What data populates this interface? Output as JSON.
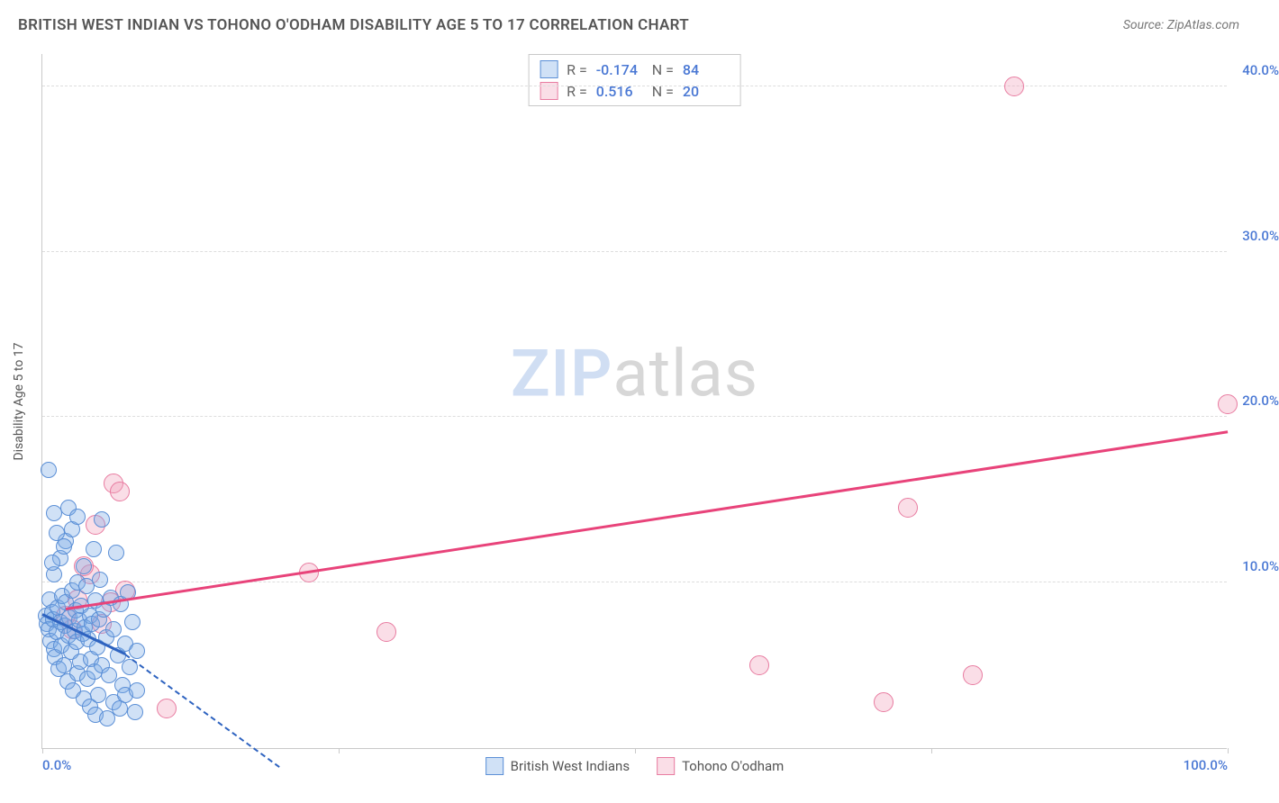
{
  "header": {
    "title": "BRITISH WEST INDIAN VS TOHONO O'ODHAM DISABILITY AGE 5 TO 17 CORRELATION CHART",
    "source": "Source: ZipAtlas.com"
  },
  "chart": {
    "type": "scatter",
    "y_axis_title": "Disability Age 5 to 17",
    "xlim": [
      0,
      100
    ],
    "ylim": [
      0,
      42
    ],
    "y_ticks": [
      10,
      20,
      30,
      40
    ],
    "y_tick_labels": [
      "10.0%",
      "20.0%",
      "30.0%",
      "40.0%"
    ],
    "x_ticks": [
      0,
      25,
      50,
      75,
      100
    ],
    "x_tick_labels_shown": {
      "0": "0.0%",
      "100": "100.0%"
    },
    "grid_color": "#dddddd",
    "axis_color": "#c9c9c9",
    "background_color": "#ffffff",
    "label_color": "#4a78d4",
    "watermark": {
      "part1": "ZIP",
      "part2": "atlas"
    }
  },
  "series": {
    "blue": {
      "name": "British West Indians",
      "fill": "rgba(120,170,230,0.35)",
      "stroke": "#5b8fd6",
      "marker_radius": 9,
      "R": "-0.174",
      "N": "84",
      "trend": {
        "x1": 0,
        "y1": 8.0,
        "x2": 7,
        "y2": 5.6,
        "solid_color": "#2e63c0",
        "dash_extend_to_x": 20,
        "dash_y_at_end": -1.2
      },
      "points": [
        [
          0.3,
          8.0
        ],
        [
          0.4,
          7.5
        ],
        [
          0.5,
          7.2
        ],
        [
          0.6,
          9.0
        ],
        [
          0.7,
          6.5
        ],
        [
          0.8,
          8.2
        ],
        [
          0.9,
          7.8
        ],
        [
          1.0,
          6.0
        ],
        [
          1.0,
          10.5
        ],
        [
          1.1,
          5.5
        ],
        [
          1.2,
          7.0
        ],
        [
          1.3,
          8.5
        ],
        [
          1.4,
          4.8
        ],
        [
          1.5,
          7.6
        ],
        [
          1.5,
          11.5
        ],
        [
          1.6,
          6.2
        ],
        [
          1.7,
          9.2
        ],
        [
          1.8,
          5.0
        ],
        [
          1.9,
          7.4
        ],
        [
          2.0,
          8.8
        ],
        [
          2.0,
          12.5
        ],
        [
          2.1,
          4.0
        ],
        [
          2.2,
          6.8
        ],
        [
          2.3,
          7.9
        ],
        [
          2.4,
          5.8
        ],
        [
          2.5,
          9.5
        ],
        [
          2.5,
          13.2
        ],
        [
          2.6,
          3.5
        ],
        [
          2.7,
          7.1
        ],
        [
          2.8,
          8.3
        ],
        [
          2.9,
          6.4
        ],
        [
          3.0,
          4.5
        ],
        [
          3.0,
          10.0
        ],
        [
          3.1,
          7.7
        ],
        [
          3.2,
          5.2
        ],
        [
          3.3,
          8.6
        ],
        [
          3.4,
          6.9
        ],
        [
          3.5,
          3.0
        ],
        [
          3.5,
          11.0
        ],
        [
          3.6,
          7.3
        ],
        [
          3.7,
          9.8
        ],
        [
          3.8,
          4.2
        ],
        [
          3.9,
          6.6
        ],
        [
          4.0,
          8.0
        ],
        [
          4.0,
          2.5
        ],
        [
          4.1,
          5.4
        ],
        [
          4.2,
          7.5
        ],
        [
          4.3,
          12.0
        ],
        [
          4.4,
          4.6
        ],
        [
          4.5,
          8.9
        ],
        [
          4.6,
          6.1
        ],
        [
          4.7,
          3.2
        ],
        [
          4.8,
          7.8
        ],
        [
          4.9,
          10.2
        ],
        [
          5.0,
          5.0
        ],
        [
          5.0,
          13.8
        ],
        [
          5.2,
          8.4
        ],
        [
          5.4,
          6.7
        ],
        [
          5.6,
          4.4
        ],
        [
          5.8,
          9.1
        ],
        [
          6.0,
          7.2
        ],
        [
          6.0,
          2.8
        ],
        [
          6.2,
          11.8
        ],
        [
          6.4,
          5.6
        ],
        [
          6.6,
          8.7
        ],
        [
          6.8,
          3.8
        ],
        [
          7.0,
          6.3
        ],
        [
          7.0,
          3.2
        ],
        [
          7.2,
          9.4
        ],
        [
          7.4,
          4.9
        ],
        [
          7.6,
          7.6
        ],
        [
          7.8,
          2.2
        ],
        [
          8.0,
          3.5
        ],
        [
          8.0,
          5.9
        ],
        [
          1.2,
          13.0
        ],
        [
          1.8,
          12.2
        ],
        [
          2.2,
          14.5
        ],
        [
          0.8,
          11.2
        ],
        [
          3.0,
          14.0
        ],
        [
          0.5,
          16.8
        ],
        [
          1.0,
          14.2
        ],
        [
          4.5,
          2.0
        ],
        [
          6.5,
          2.4
        ],
        [
          5.5,
          1.8
        ]
      ]
    },
    "pink": {
      "name": "Tohono O'odham",
      "fill": "rgba(240,160,185,0.35)",
      "stroke": "#e87ba0",
      "marker_radius": 11,
      "R": "0.516",
      "N": "20",
      "trend": {
        "x1": 2,
        "y1": 8.3,
        "x2": 100,
        "y2": 19.0,
        "solid_color": "#e8437a"
      },
      "points": [
        [
          2.0,
          8.0
        ],
        [
          4.5,
          13.5
        ],
        [
          5.8,
          8.8
        ],
        [
          6.0,
          16.0
        ],
        [
          6.5,
          15.5
        ],
        [
          4.0,
          10.5
        ],
        [
          3.0,
          9.0
        ],
        [
          5.0,
          7.5
        ],
        [
          10.5,
          2.4
        ],
        [
          22.5,
          10.6
        ],
        [
          29.0,
          7.0
        ],
        [
          60.5,
          5.0
        ],
        [
          71.0,
          2.8
        ],
        [
          73.0,
          14.5
        ],
        [
          78.5,
          4.4
        ],
        [
          82.0,
          40.0
        ],
        [
          100.0,
          20.8
        ],
        [
          3.5,
          11.0
        ],
        [
          2.5,
          7.2
        ],
        [
          7.0,
          9.5
        ]
      ]
    }
  },
  "stats_box": {
    "rows": [
      {
        "swatch": "blue",
        "R_label": "R =",
        "R_val": "-0.174",
        "N_label": "N =",
        "N_val": "84"
      },
      {
        "swatch": "pink",
        "R_label": "R =",
        "R_val": "0.516",
        "N_label": "N =",
        "N_val": "20"
      }
    ]
  },
  "bottom_legend": {
    "items": [
      {
        "swatch": "blue",
        "label": "British West Indians"
      },
      {
        "swatch": "pink",
        "label": "Tohono O'odham"
      }
    ]
  }
}
